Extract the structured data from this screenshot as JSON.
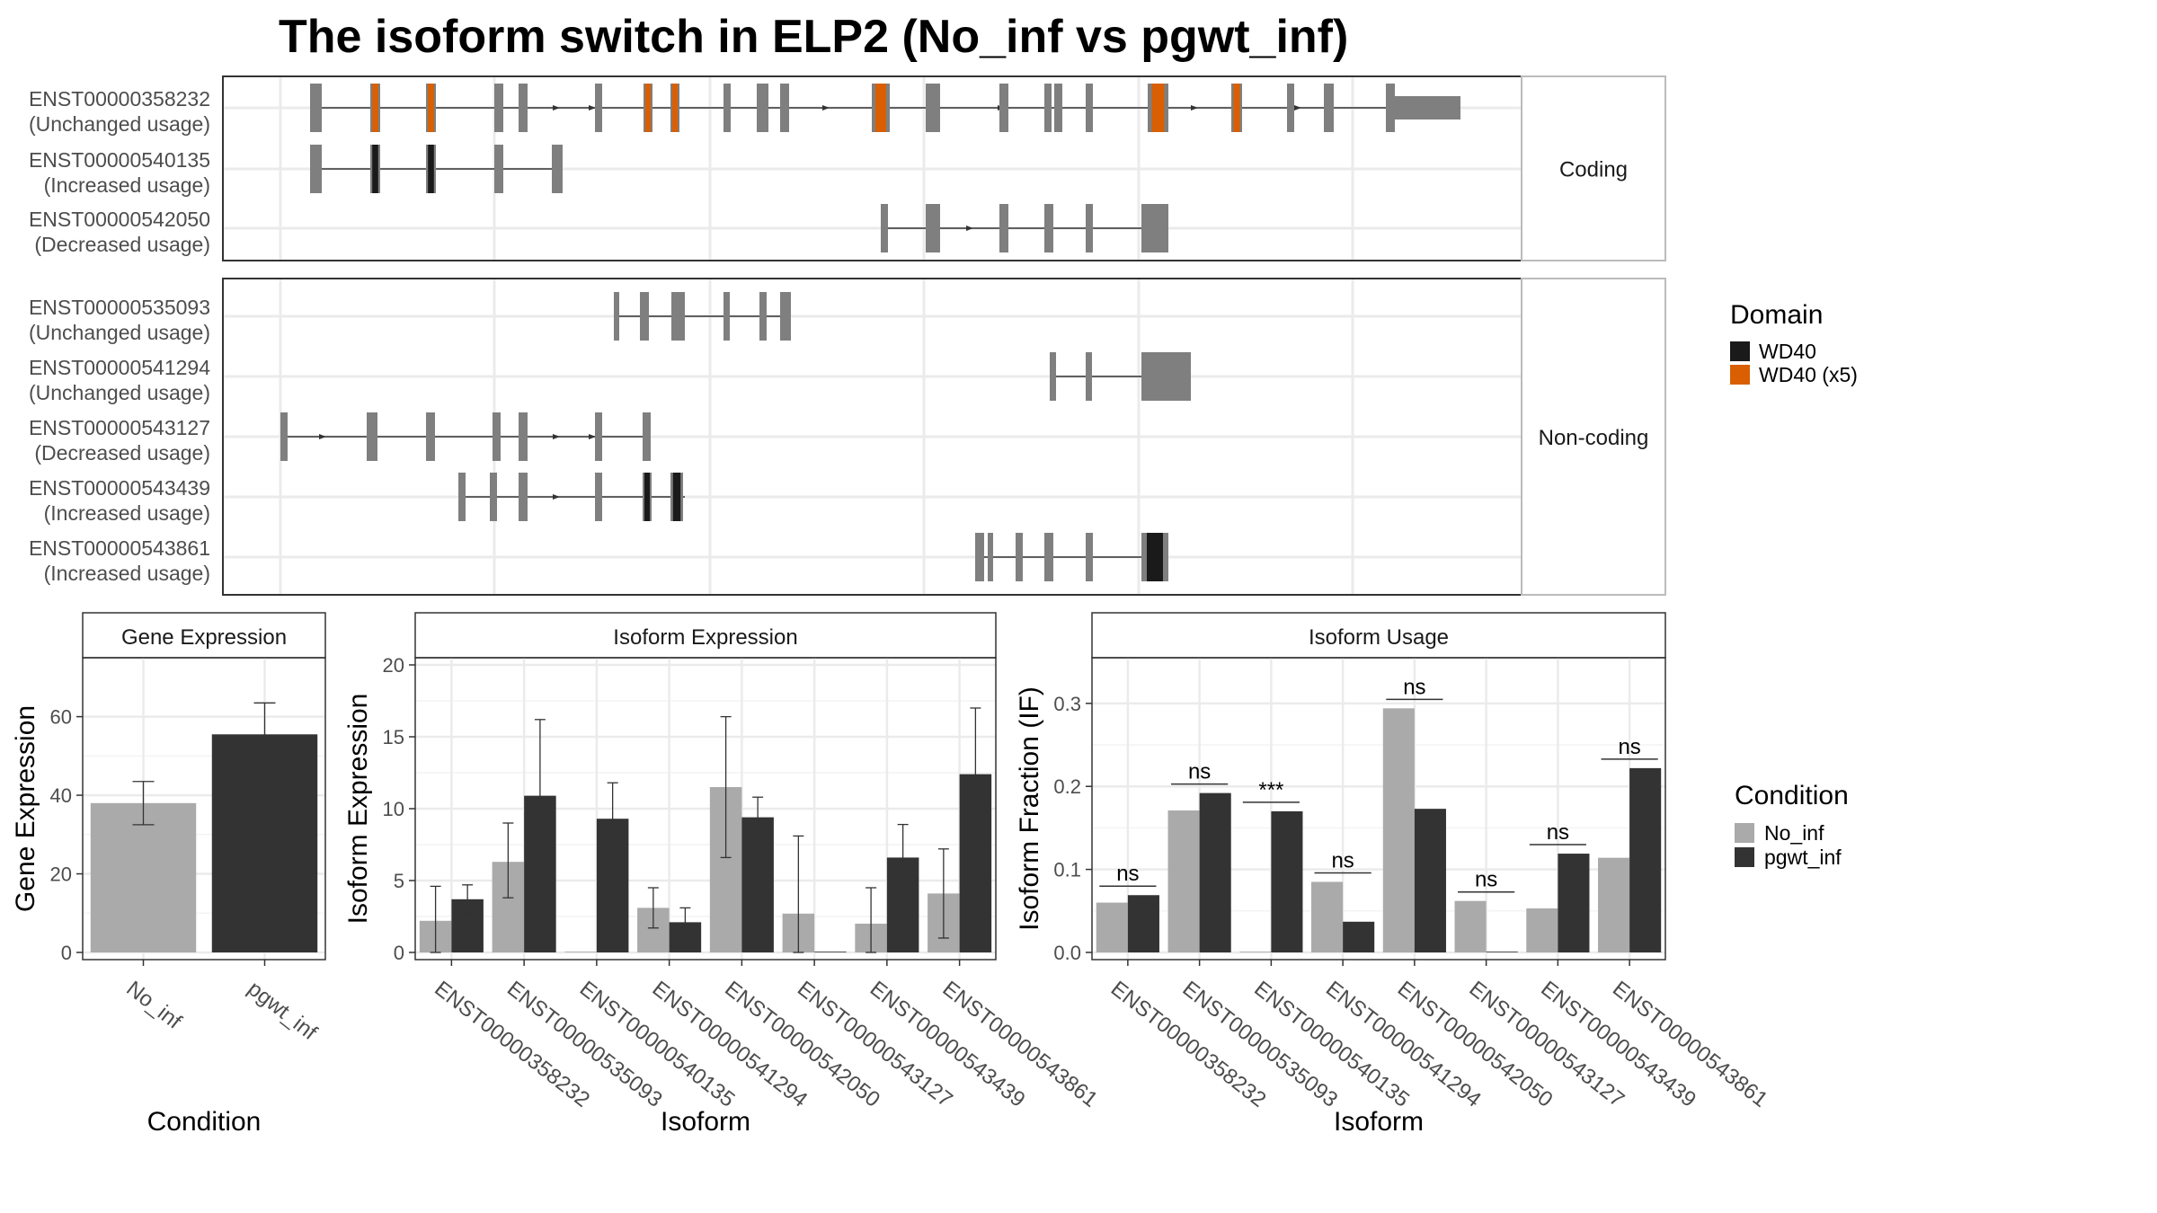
{
  "title": "The isoform switch in ELP2 (No_inf vs pgwt_inf)",
  "colors": {
    "exon": "#7f7f7f",
    "wd40": "#1a1a1a",
    "wd40x5": "#d95f02",
    "no_inf": "#aaaaaa",
    "pgwt_inf": "#333333"
  },
  "structure": {
    "panels": [
      {
        "label": "Coding",
        "transcripts": [
          {
            "id": "ENST00000358232",
            "usage": "(Unchanged usage)"
          },
          {
            "id": "ENST00000540135",
            "usage": "(Increased usage)"
          },
          {
            "id": "ENST00000542050",
            "usage": "(Decreased usage)"
          }
        ]
      },
      {
        "label": "Non-coding",
        "transcripts": [
          {
            "id": "ENST00000535093",
            "usage": "(Unchanged usage)"
          },
          {
            "id": "ENST00000541294",
            "usage": "(Unchanged usage)"
          },
          {
            "id": "ENST00000543127",
            "usage": "(Decreased usage)"
          },
          {
            "id": "ENST00000543439",
            "usage": "(Increased usage)"
          },
          {
            "id": "ENST00000543861",
            "usage": "(Increased usage)"
          }
        ]
      }
    ]
  },
  "legend_domain": {
    "title": "Domain",
    "entries": [
      {
        "label": "WD40",
        "color": "#1a1a1a"
      },
      {
        "label": "WD40 (x5)",
        "color": "#d95f02"
      }
    ]
  },
  "legend_condition": {
    "title": "Condition",
    "entries": [
      {
        "label": "No_inf",
        "color": "#aaaaaa"
      },
      {
        "label": "pgwt_inf",
        "color": "#333333"
      }
    ]
  },
  "chart_data": [
    {
      "type": "bar",
      "panel_title": "Gene Expression",
      "xlabel": "Condition",
      "ylabel": "Gene Expression",
      "ylim": [
        0,
        75
      ],
      "yticks": [
        0,
        20,
        40,
        60
      ],
      "categories": [
        "No_inf",
        "pgwt_inf"
      ],
      "values": [
        38,
        55.5
      ],
      "errors": [
        [
          32.5,
          43.5
        ],
        [
          47.5,
          63.5
        ]
      ]
    },
    {
      "type": "bar",
      "panel_title": "Isoform Expression",
      "xlabel": "Isoform",
      "ylabel": "Isoform Expression",
      "ylim": [
        0,
        20.5
      ],
      "yticks": [
        0,
        5,
        10,
        15,
        20
      ],
      "categories": [
        "ENST00000358232",
        "ENST00000535093",
        "ENST00000540135",
        "ENST00000541294",
        "ENST00000542050",
        "ENST00000543127",
        "ENST00000543439",
        "ENST00000543861"
      ],
      "series": [
        {
          "name": "No_inf",
          "values": [
            2.2,
            6.3,
            0,
            3.1,
            11.5,
            2.7,
            2.0,
            4.1
          ],
          "errors": [
            [
              0,
              4.6
            ],
            [
              3.8,
              9.0
            ],
            [
              0,
              0
            ],
            [
              1.7,
              4.5
            ],
            [
              6.6,
              16.4
            ],
            [
              0,
              8.1
            ],
            [
              0,
              4.5
            ],
            [
              1.0,
              7.2
            ]
          ]
        },
        {
          "name": "pgwt_inf",
          "values": [
            3.7,
            10.9,
            9.3,
            2.1,
            9.4,
            0,
            6.6,
            12.4
          ],
          "errors": [
            [
              2.7,
              4.7
            ],
            [
              5.6,
              16.2
            ],
            [
              6.8,
              11.8
            ],
            [
              1.1,
              3.1
            ],
            [
              8.0,
              10.8
            ],
            [
              0,
              0
            ],
            [
              4.3,
              8.9
            ],
            [
              7.8,
              17.0
            ]
          ]
        }
      ]
    },
    {
      "type": "bar",
      "panel_title": "Isoform Usage",
      "xlabel": "Isoform",
      "ylabel": "Isoform Fraction (IF)",
      "ylim": [
        0,
        0.355
      ],
      "yticks": [
        0.0,
        0.1,
        0.2,
        0.3
      ],
      "ytick_labels": [
        "0.0",
        "0.1",
        "0.2",
        "0.3"
      ],
      "categories": [
        "ENST00000358232",
        "ENST00000535093",
        "ENST00000540135",
        "ENST00000541294",
        "ENST00000542050",
        "ENST00000543127",
        "ENST00000543439",
        "ENST00000543861"
      ],
      "series": [
        {
          "name": "No_inf",
          "values": [
            0.06,
            0.171,
            0,
            0.085,
            0.294,
            0.062,
            0.053,
            0.114
          ]
        },
        {
          "name": "pgwt_inf",
          "values": [
            0.069,
            0.192,
            0.17,
            0.037,
            0.173,
            0,
            0.119,
            0.222
          ]
        }
      ],
      "significance": [
        "ns",
        "ns",
        "***",
        "ns",
        "ns",
        "ns",
        "ns",
        "ns"
      ]
    }
  ]
}
